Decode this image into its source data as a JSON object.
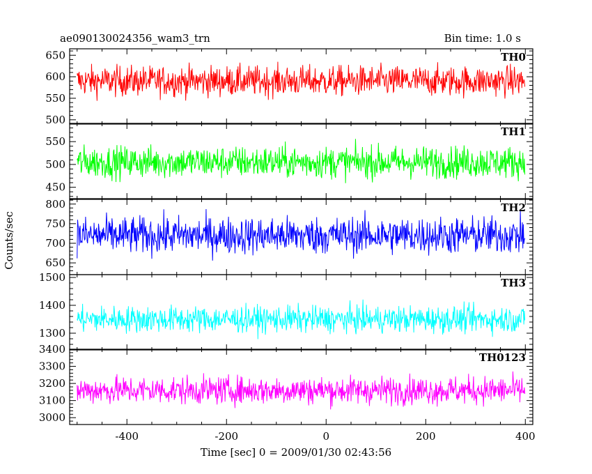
{
  "chart_data": {
    "type": "line",
    "title_left": "ae090130024356_wam3_trn",
    "title_right": "Bin time: 1.0 s",
    "xlabel": "Time [sec] 0 = 2009/01/30 02:43:56",
    "ylabel": "Counts/sec",
    "xlim": [
      -515,
      415
    ],
    "x_ticks": [
      -400,
      -200,
      0,
      200,
      400
    ],
    "x_range": [
      -500,
      399
    ],
    "panels": [
      {
        "name": "TH0",
        "color": "#ff0000",
        "ylim": [
          490,
          665
        ],
        "y_ticks": [
          500,
          550,
          600,
          650
        ],
        "mean": 590,
        "spread": 28
      },
      {
        "name": "TH1",
        "color": "#00ff00",
        "ylim": [
          425,
          590
        ],
        "y_ticks": [
          450,
          500,
          550
        ],
        "mean": 505,
        "spread": 28
      },
      {
        "name": "TH2",
        "color": "#0000ff",
        "ylim": [
          620,
          812
        ],
        "y_ticks": [
          650,
          700,
          750,
          800
        ],
        "mean": 720,
        "spread": 38
      },
      {
        "name": "TH3",
        "color": "#00ffff",
        "ylim": [
          1240,
          1510
        ],
        "y_ticks": [
          1300,
          1400,
          1500
        ],
        "mean": 1350,
        "spread": 38
      },
      {
        "name": "TH0123",
        "color": "#ff00ff",
        "ylim": [
          2960,
          3400
        ],
        "y_ticks": [
          3000,
          3100,
          3200,
          3300,
          3400
        ],
        "mean": 3160,
        "spread": 65
      }
    ]
  }
}
